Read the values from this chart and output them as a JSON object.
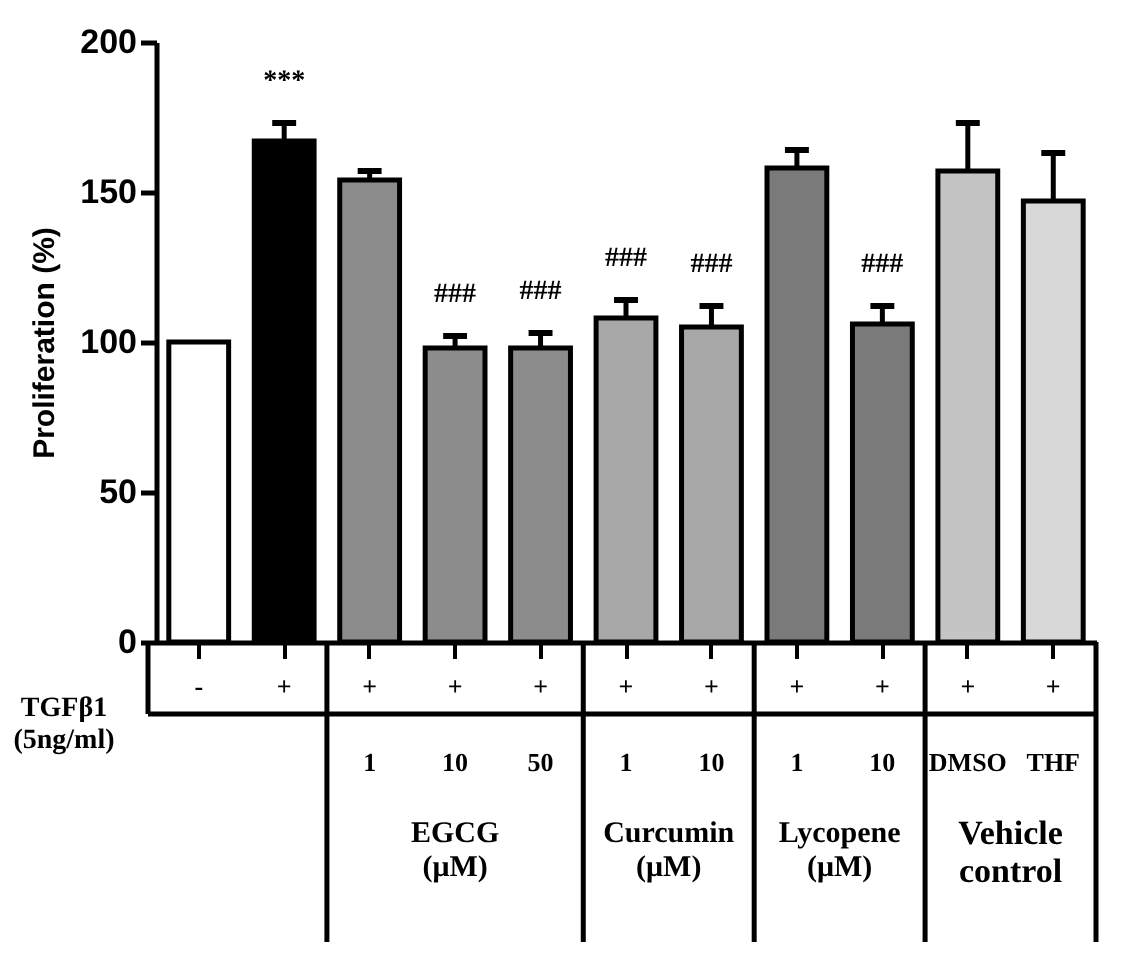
{
  "chart_data": {
    "type": "bar",
    "ylabel": "Proliferation (%)",
    "categories": [
      "-",
      "+",
      "+\n1",
      "+\n10",
      "+\n50",
      "+\n1",
      "+\n10",
      "+\n1",
      "+\n10",
      "+\nDMSO",
      "+\nTHF"
    ],
    "values": [
      100,
      167,
      154,
      98,
      98,
      108,
      105,
      158,
      106,
      157,
      147
    ],
    "colors": [
      "#ffffff",
      "#000000",
      "#8c8c8c",
      "#8c8c8c",
      "#8c8c8c",
      "#a8a8a8",
      "#a8a8a8",
      "#7a7a7a",
      "#7a7a7a",
      "#c4c4c4",
      "#d8d8d8"
    ],
    "errors": [
      null,
      6,
      3,
      4,
      5,
      6,
      7,
      6,
      6,
      16,
      16
    ],
    "value_labels": [
      null,
      "***",
      null,
      "###",
      "###",
      "###",
      "###",
      null,
      "###",
      null,
      null
    ],
    "annotations": [
      "TGFβ1\n(5ng/ml)",
      "EGCG\n(μM)",
      "Curcumin\n(μM)",
      "Lycopene\n(μM)",
      "Vehicle\ncontrol"
    ],
    "ylim": [
      0,
      200
    ],
    "yticks": [
      0,
      50,
      100,
      150,
      200
    ],
    "grid": false
  }
}
